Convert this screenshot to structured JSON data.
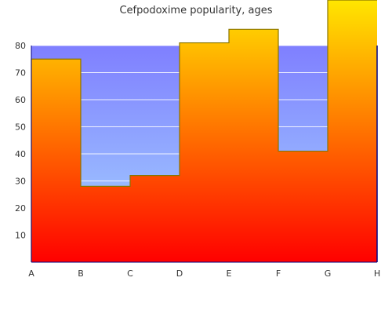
{
  "chart_data": {
    "type": "area",
    "title": "Cefpodoxime popularity, ages",
    "xlabel": "",
    "ylabel": "",
    "categories": [
      "A",
      "B",
      "C",
      "D",
      "E",
      "F",
      "G",
      "H"
    ],
    "ylim": [
      0,
      80
    ],
    "yticks": [
      10,
      20,
      30,
      40,
      50,
      60,
      70,
      80
    ],
    "grid": true,
    "legend": "none",
    "series": [
      {
        "step_points": [
          {
            "x": "A",
            "y": 75
          },
          {
            "x": "B",
            "y": 28
          },
          {
            "x": "C",
            "y": 32
          },
          {
            "x": "D",
            "y": 81
          },
          {
            "x": "E",
            "y": 86
          },
          {
            "x": "F",
            "y": 41
          },
          {
            "x": "G",
            "y": 100
          },
          {
            "x": "H",
            "y": 100
          }
        ]
      }
    ],
    "colors": {
      "background_top": "#7f7fff",
      "background_bottom": "#a6d7ff",
      "fill_top": "#ffe600",
      "fill_bottom": "#ff0000",
      "line": "#8a7500",
      "axis": "#000080",
      "grid": "#ffffff"
    }
  }
}
